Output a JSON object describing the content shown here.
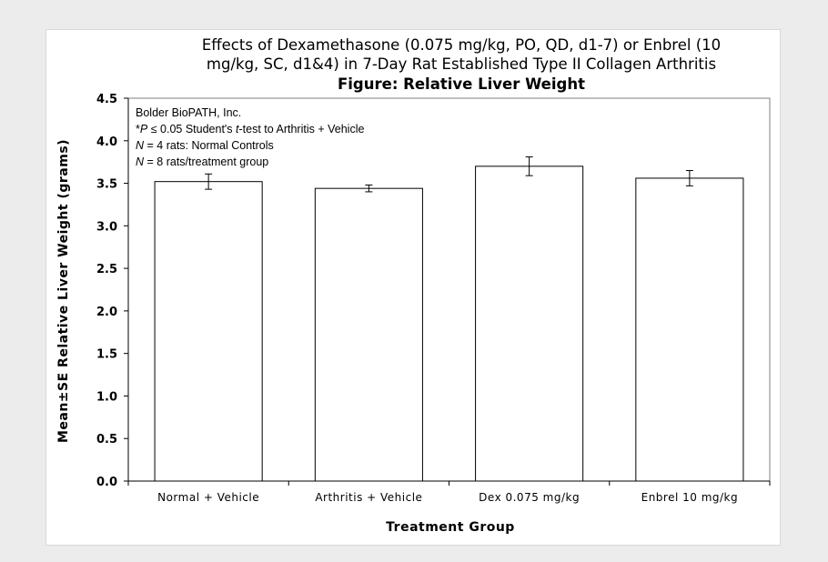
{
  "chart_data": {
    "type": "bar",
    "title": [
      "Effects of Dexamethasone (0.075 mg/kg, PO, QD, d1-7) or Enbrel (10",
      "mg/kg, SC, d1&4) in 7-Day Rat Established Type II Collagen Arthritis"
    ],
    "subtitle": "Figure: Relative Liver Weight",
    "xlabel": "Treatment Group",
    "ylabel": "Mean±SE Relative Liver Weight (grams)",
    "categories": [
      "Normal + Vehicle",
      "Arthritis + Vehicle",
      "Dex 0.075 mg/kg",
      "Enbrel 10 mg/kg"
    ],
    "values": [
      3.52,
      3.44,
      3.7,
      3.56
    ],
    "errors": [
      0.09,
      0.04,
      0.11,
      0.09
    ],
    "ylim": [
      0,
      4.5
    ],
    "yticks": [
      "0.0",
      "0.5",
      "1.0",
      "1.5",
      "2.0",
      "2.5",
      "3.0",
      "3.5",
      "4.0",
      "4.5"
    ],
    "grid": false,
    "bar_color": "#ffffff",
    "edge_color": "#000000",
    "annotations": [
      "Bolder BioPATH, Inc.",
      "*P ≤ 0.05 Student's t-test to Arthritis + Vehicle",
      "N = 4 rats: Normal Controls",
      "N = 8 rats/treatment group"
    ]
  }
}
